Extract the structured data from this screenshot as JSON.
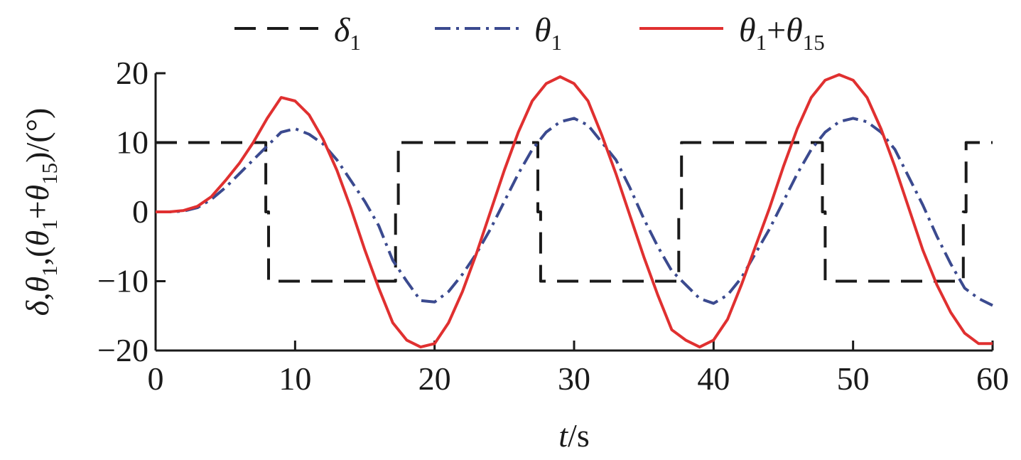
{
  "chart_data": {
    "type": "line",
    "xlabel": {
      "var": "t",
      "unit": "/s"
    },
    "ylabel": {
      "parts": [
        {
          "text": "δ",
          "italic": true
        },
        {
          "text": ",",
          "italic": false
        },
        {
          "text": "θ",
          "italic": true
        },
        {
          "text": "1",
          "sub": true
        },
        {
          "text": ",(",
          "italic": false
        },
        {
          "text": "θ",
          "italic": true
        },
        {
          "text": "1",
          "sub": true
        },
        {
          "text": "+",
          "italic": false
        },
        {
          "text": "θ",
          "italic": true
        },
        {
          "text": "15",
          "sub": true
        },
        {
          "text": ")/(°)",
          "italic": false
        }
      ]
    },
    "xlim": [
      0,
      60
    ],
    "ylim": [
      -20,
      20
    ],
    "xticks": [
      0,
      10,
      20,
      30,
      40,
      50,
      60
    ],
    "yticks": [
      20,
      10,
      0,
      -10,
      -20
    ],
    "ytick_labels": [
      "20",
      "10",
      "0",
      "−10",
      "−20"
    ],
    "grid": false,
    "legend_position": "top",
    "series": [
      {
        "name": "δ1",
        "legend": {
          "main": "δ",
          "sub": "1"
        },
        "color": "#1a1a1a",
        "style": "dashed",
        "x": [
          0,
          7.9,
          7.9,
          8.1,
          8.1,
          17.2,
          17.2,
          17.4,
          17.4,
          27.4,
          27.4,
          27.6,
          27.6,
          37.5,
          37.5,
          37.7,
          37.7,
          47.8,
          47.8,
          48.0,
          48.0,
          57.9,
          57.9,
          58.1,
          58.1,
          60
        ],
        "y": [
          10,
          10,
          0,
          0,
          -10,
          -10,
          0,
          0,
          10,
          10,
          0,
          0,
          -10,
          -10,
          0,
          0,
          10,
          10,
          0,
          0,
          -10,
          -10,
          0,
          0,
          10,
          10
        ]
      },
      {
        "name": "θ1",
        "legend": {
          "main": "θ",
          "sub": "1"
        },
        "color": "#3b4a8f",
        "style": "dashdot",
        "x": [
          0,
          1,
          2,
          3,
          4,
          5,
          6,
          7,
          8,
          9,
          10,
          11,
          12,
          13,
          14,
          15,
          16,
          17,
          18,
          19,
          20,
          21,
          22,
          23,
          24,
          25,
          26,
          27,
          28,
          29,
          30,
          31,
          32,
          33,
          34,
          35,
          36,
          37,
          38,
          39,
          40,
          41,
          42,
          43,
          44,
          45,
          46,
          47,
          48,
          49,
          50,
          51,
          52,
          53,
          54,
          55,
          56,
          57,
          58,
          59,
          60
        ],
        "y": [
          0,
          0,
          0.1,
          0.6,
          1.8,
          3.5,
          5.5,
          7.5,
          9.5,
          11.5,
          12,
          11.2,
          9.8,
          7.5,
          4.5,
          1.5,
          -2,
          -7,
          -10,
          -12.8,
          -13,
          -11.5,
          -9,
          -6,
          -2.5,
          1.5,
          5.5,
          9,
          11.5,
          13,
          13.5,
          12.5,
          10,
          7.5,
          3.5,
          -1,
          -5,
          -8.5,
          -10.5,
          -12.5,
          -13.2,
          -12,
          -9.5,
          -6,
          -2.5,
          1.5,
          5.5,
          9,
          11.5,
          13,
          13.5,
          13,
          11.5,
          9,
          5,
          1,
          -3.5,
          -7.5,
          -11,
          -12.5,
          -13.5
        ]
      },
      {
        "name": "θ1+θ15",
        "legend": {
          "main": "θ",
          "sub": "1",
          "plus": "+",
          "main2": "θ",
          "sub2": "15"
        },
        "color": "#e03030",
        "style": "solid",
        "x": [
          0,
          1,
          2,
          3,
          4,
          5,
          6,
          7,
          8,
          9,
          10,
          11,
          12,
          13,
          14,
          15,
          16,
          17,
          18,
          19,
          20,
          21,
          22,
          23,
          24,
          25,
          26,
          27,
          28,
          29,
          30,
          31,
          32,
          33,
          34,
          35,
          36,
          37,
          38,
          39,
          40,
          41,
          42,
          43,
          44,
          45,
          46,
          47,
          48,
          49,
          50,
          51,
          52,
          53,
          54,
          55,
          56,
          57,
          58,
          59,
          60
        ],
        "y": [
          0,
          0,
          0.2,
          0.8,
          2.2,
          4.5,
          7,
          10,
          13.5,
          16.5,
          16,
          14,
          10.5,
          6,
          0.5,
          -5.5,
          -11,
          -16,
          -18.5,
          -19.5,
          -19,
          -16,
          -11.5,
          -6,
          0,
          6,
          11.5,
          16,
          18.5,
          19.5,
          18.5,
          16,
          11,
          5.5,
          -0.5,
          -6.5,
          -12,
          -17,
          -18.5,
          -19.5,
          -18.5,
          -15.5,
          -10.5,
          -5,
          0.5,
          6.5,
          12,
          16.5,
          19,
          19.8,
          19,
          16.5,
          12,
          6.5,
          0.5,
          -5.5,
          -10.5,
          -14.5,
          -17.5,
          -19,
          -19
        ]
      }
    ]
  }
}
